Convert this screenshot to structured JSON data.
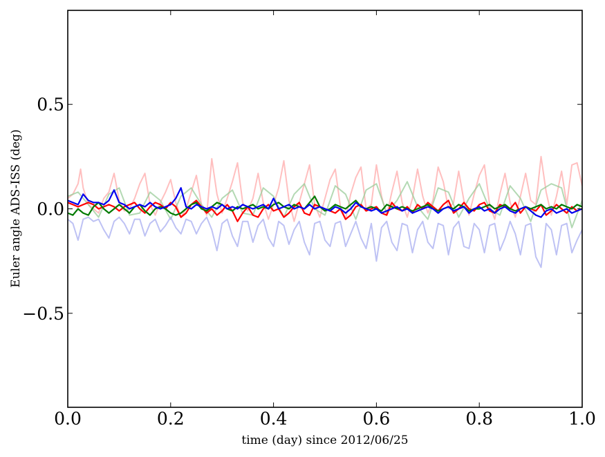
{
  "chart_data": {
    "type": "line",
    "title": "",
    "xlabel": "time (day) since 2012/06/25",
    "ylabel": "Euler angle ADS-ISS (deg)",
    "xlim": [
      0.0,
      1.0
    ],
    "ylim": [
      -0.95,
      0.95
    ],
    "xticks": [
      0.0,
      0.2,
      0.4,
      0.6,
      0.8,
      1.0
    ],
    "xtick_labels": [
      "0.0",
      "0.2",
      "0.4",
      "0.6",
      "0.8",
      "1.0"
    ],
    "yticks": [
      -0.5,
      0.0,
      0.5
    ],
    "ytick_labels": [
      "−0.5",
      "0.0",
      "0.5"
    ],
    "grid": false,
    "legend": "none",
    "series": [
      {
        "color": "#ffaaaa",
        "opacity": 0.75,
        "width": 2,
        "x": [
          0.0,
          0.01,
          0.02,
          0.025,
          0.03,
          0.04,
          0.05,
          0.06,
          0.07,
          0.08,
          0.09,
          0.1,
          0.11,
          0.12,
          0.13,
          0.14,
          0.15,
          0.16,
          0.17,
          0.18,
          0.19,
          0.2,
          0.21,
          0.22,
          0.23,
          0.24,
          0.25,
          0.26,
          0.27,
          0.28,
          0.29,
          0.3,
          0.31,
          0.32,
          0.33,
          0.34,
          0.35,
          0.36,
          0.37,
          0.38,
          0.39,
          0.4,
          0.41,
          0.42,
          0.43,
          0.44,
          0.45,
          0.46,
          0.47,
          0.48,
          0.49,
          0.5,
          0.51,
          0.52,
          0.53,
          0.54,
          0.55,
          0.56,
          0.57,
          0.58,
          0.59,
          0.6,
          0.61,
          0.62,
          0.63,
          0.64,
          0.65,
          0.66,
          0.67,
          0.68,
          0.69,
          0.7,
          0.71,
          0.72,
          0.73,
          0.74,
          0.75,
          0.76,
          0.77,
          0.78,
          0.79,
          0.8,
          0.81,
          0.82,
          0.83,
          0.84,
          0.85,
          0.86,
          0.87,
          0.88,
          0.89,
          0.9,
          0.91,
          0.92,
          0.93,
          0.94,
          0.95,
          0.96,
          0.97,
          0.98,
          0.99,
          1.0
        ],
        "y": [
          0.05,
          0.07,
          0.12,
          0.19,
          0.1,
          0.02,
          0.0,
          -0.02,
          0.05,
          0.08,
          0.17,
          0.04,
          -0.01,
          0.0,
          0.05,
          0.12,
          0.17,
          0.02,
          -0.03,
          0.03,
          0.08,
          0.14,
          0.03,
          -0.04,
          0.0,
          0.08,
          0.16,
          0.02,
          -0.03,
          0.24,
          0.07,
          -0.02,
          0.05,
          0.13,
          0.22,
          0.03,
          -0.01,
          0.05,
          0.17,
          0.03,
          -0.05,
          0.02,
          0.1,
          0.23,
          0.04,
          -0.06,
          0.03,
          0.12,
          0.21,
          0.02,
          -0.04,
          0.05,
          0.14,
          0.19,
          0.01,
          -0.05,
          0.07,
          0.15,
          0.2,
          0.0,
          0.02,
          0.21,
          0.06,
          -0.03,
          0.08,
          0.18,
          0.03,
          -0.04,
          0.05,
          0.19,
          0.06,
          -0.02,
          0.04,
          0.2,
          0.13,
          0.0,
          0.03,
          0.18,
          0.04,
          -0.03,
          0.07,
          0.16,
          0.21,
          0.02,
          -0.05,
          0.07,
          0.17,
          0.03,
          -0.04,
          0.06,
          0.17,
          0.04,
          0.02,
          0.25,
          0.08,
          -0.03,
          0.06,
          0.18,
          0.02,
          0.21,
          0.22,
          0.11
        ]
      },
      {
        "color": "#99cc99",
        "opacity": 0.75,
        "width": 2,
        "x": [
          0.0,
          0.02,
          0.04,
          0.06,
          0.08,
          0.1,
          0.12,
          0.14,
          0.16,
          0.18,
          0.2,
          0.22,
          0.24,
          0.26,
          0.28,
          0.3,
          0.32,
          0.34,
          0.36,
          0.38,
          0.4,
          0.42,
          0.44,
          0.46,
          0.48,
          0.5,
          0.52,
          0.54,
          0.56,
          0.58,
          0.6,
          0.62,
          0.64,
          0.66,
          0.68,
          0.7,
          0.72,
          0.74,
          0.76,
          0.78,
          0.8,
          0.82,
          0.84,
          0.86,
          0.88,
          0.9,
          0.92,
          0.94,
          0.96,
          0.98,
          1.0
        ],
        "y": [
          0.06,
          0.08,
          0.02,
          -0.04,
          0.07,
          0.1,
          -0.03,
          -0.02,
          0.08,
          0.04,
          -0.05,
          0.06,
          0.1,
          0.02,
          -0.04,
          0.05,
          0.09,
          -0.02,
          -0.03,
          0.1,
          0.06,
          -0.04,
          0.07,
          0.12,
          0.0,
          -0.03,
          0.11,
          0.07,
          -0.05,
          0.09,
          0.12,
          -0.02,
          0.04,
          0.13,
          0.01,
          -0.05,
          0.1,
          0.08,
          -0.04,
          0.05,
          0.12,
          0.0,
          -0.03,
          0.11,
          0.05,
          -0.06,
          0.09,
          0.12,
          0.1,
          -0.09,
          0.04
        ]
      },
      {
        "color": "#a8aef0",
        "opacity": 0.75,
        "width": 2,
        "x": [
          0.0,
          0.01,
          0.02,
          0.03,
          0.04,
          0.05,
          0.06,
          0.07,
          0.08,
          0.09,
          0.1,
          0.11,
          0.12,
          0.13,
          0.14,
          0.15,
          0.16,
          0.17,
          0.18,
          0.19,
          0.2,
          0.21,
          0.22,
          0.23,
          0.24,
          0.25,
          0.26,
          0.27,
          0.28,
          0.29,
          0.3,
          0.31,
          0.32,
          0.33,
          0.34,
          0.35,
          0.36,
          0.37,
          0.38,
          0.39,
          0.4,
          0.41,
          0.42,
          0.43,
          0.44,
          0.45,
          0.46,
          0.47,
          0.48,
          0.49,
          0.5,
          0.51,
          0.52,
          0.53,
          0.54,
          0.55,
          0.56,
          0.57,
          0.58,
          0.59,
          0.6,
          0.61,
          0.62,
          0.63,
          0.64,
          0.65,
          0.66,
          0.67,
          0.68,
          0.69,
          0.7,
          0.71,
          0.72,
          0.73,
          0.74,
          0.75,
          0.76,
          0.77,
          0.78,
          0.79,
          0.8,
          0.81,
          0.82,
          0.83,
          0.84,
          0.85,
          0.86,
          0.87,
          0.88,
          0.89,
          0.9,
          0.91,
          0.92,
          0.93,
          0.94,
          0.95,
          0.96,
          0.97,
          0.98,
          0.99,
          1.0
        ],
        "y": [
          -0.05,
          -0.07,
          -0.15,
          -0.05,
          -0.04,
          -0.06,
          -0.05,
          -0.1,
          -0.14,
          -0.06,
          -0.04,
          -0.07,
          -0.12,
          -0.05,
          -0.05,
          -0.13,
          -0.07,
          -0.05,
          -0.11,
          -0.08,
          -0.04,
          -0.09,
          -0.12,
          -0.05,
          -0.06,
          -0.12,
          -0.07,
          -0.04,
          -0.1,
          -0.2,
          -0.07,
          -0.05,
          -0.13,
          -0.18,
          -0.06,
          -0.06,
          -0.16,
          -0.08,
          -0.05,
          -0.14,
          -0.18,
          -0.06,
          -0.08,
          -0.17,
          -0.1,
          -0.06,
          -0.16,
          -0.22,
          -0.07,
          -0.06,
          -0.15,
          -0.18,
          -0.07,
          -0.06,
          -0.18,
          -0.12,
          -0.06,
          -0.14,
          -0.19,
          -0.07,
          -0.25,
          -0.09,
          -0.06,
          -0.16,
          -0.2,
          -0.07,
          -0.08,
          -0.21,
          -0.1,
          -0.06,
          -0.16,
          -0.19,
          -0.07,
          -0.08,
          -0.22,
          -0.09,
          -0.06,
          -0.18,
          -0.19,
          -0.07,
          -0.1,
          -0.21,
          -0.08,
          -0.07,
          -0.2,
          -0.14,
          -0.06,
          -0.12,
          -0.22,
          -0.08,
          -0.07,
          -0.23,
          -0.28,
          -0.07,
          -0.1,
          -0.22,
          -0.08,
          -0.07,
          -0.21,
          -0.15,
          -0.1
        ]
      },
      {
        "color": "#ff0000",
        "opacity": 1,
        "width": 2.2,
        "x": [
          0.0,
          0.01,
          0.02,
          0.03,
          0.04,
          0.05,
          0.06,
          0.07,
          0.08,
          0.09,
          0.1,
          0.11,
          0.12,
          0.13,
          0.14,
          0.15,
          0.16,
          0.17,
          0.18,
          0.19,
          0.2,
          0.21,
          0.22,
          0.23,
          0.24,
          0.25,
          0.26,
          0.27,
          0.28,
          0.29,
          0.3,
          0.31,
          0.32,
          0.33,
          0.34,
          0.35,
          0.36,
          0.37,
          0.38,
          0.39,
          0.4,
          0.41,
          0.42,
          0.43,
          0.44,
          0.45,
          0.46,
          0.47,
          0.48,
          0.49,
          0.5,
          0.51,
          0.52,
          0.53,
          0.54,
          0.55,
          0.56,
          0.57,
          0.58,
          0.59,
          0.6,
          0.61,
          0.62,
          0.63,
          0.64,
          0.65,
          0.66,
          0.67,
          0.68,
          0.69,
          0.7,
          0.71,
          0.72,
          0.73,
          0.74,
          0.75,
          0.76,
          0.77,
          0.78,
          0.79,
          0.8,
          0.81,
          0.82,
          0.83,
          0.84,
          0.85,
          0.86,
          0.87,
          0.88,
          0.89,
          0.9,
          0.91,
          0.92,
          0.93,
          0.94,
          0.95,
          0.96,
          0.97,
          0.98,
          0.99,
          1.0
        ],
        "y": [
          0.03,
          0.02,
          0.01,
          0.02,
          0.03,
          0.02,
          0.0,
          0.01,
          0.02,
          0.01,
          -0.01,
          0.01,
          0.02,
          0.03,
          0.0,
          -0.02,
          0.01,
          0.03,
          0.02,
          0.0,
          0.03,
          0.01,
          -0.04,
          -0.02,
          0.02,
          0.04,
          0.01,
          -0.02,
          0.0,
          -0.03,
          -0.01,
          0.02,
          -0.01,
          -0.06,
          -0.02,
          0.01,
          -0.03,
          -0.04,
          0.0,
          0.02,
          -0.01,
          0.0,
          -0.04,
          -0.02,
          0.01,
          0.03,
          -0.02,
          -0.03,
          0.02,
          0.01,
          0.0,
          -0.01,
          -0.02,
          0.0,
          -0.05,
          -0.03,
          0.01,
          0.02,
          -0.01,
          0.0,
          0.01,
          -0.02,
          -0.03,
          0.03,
          0.0,
          -0.01,
          0.01,
          -0.02,
          0.02,
          0.0,
          0.03,
          0.01,
          -0.01,
          0.02,
          0.04,
          -0.02,
          0.0,
          0.03,
          0.0,
          -0.01,
          0.02,
          0.03,
          -0.01,
          -0.02,
          0.02,
          0.01,
          0.0,
          0.03,
          -0.02,
          0.01,
          0.0,
          -0.01,
          0.02,
          -0.03,
          -0.01,
          0.02,
          0.0,
          -0.02,
          0.01,
          -0.01,
          0.0
        ]
      },
      {
        "color": "#007a00",
        "opacity": 1,
        "width": 2.2,
        "x": [
          0.0,
          0.01,
          0.02,
          0.03,
          0.04,
          0.05,
          0.06,
          0.07,
          0.08,
          0.09,
          0.1,
          0.11,
          0.12,
          0.13,
          0.14,
          0.15,
          0.16,
          0.17,
          0.18,
          0.19,
          0.2,
          0.21,
          0.22,
          0.23,
          0.24,
          0.25,
          0.26,
          0.27,
          0.28,
          0.29,
          0.3,
          0.31,
          0.32,
          0.33,
          0.34,
          0.35,
          0.36,
          0.37,
          0.38,
          0.39,
          0.4,
          0.41,
          0.42,
          0.43,
          0.44,
          0.45,
          0.46,
          0.47,
          0.48,
          0.49,
          0.5,
          0.51,
          0.52,
          0.53,
          0.54,
          0.55,
          0.56,
          0.57,
          0.58,
          0.59,
          0.6,
          0.61,
          0.62,
          0.63,
          0.64,
          0.65,
          0.66,
          0.67,
          0.68,
          0.69,
          0.7,
          0.71,
          0.72,
          0.73,
          0.74,
          0.75,
          0.76,
          0.77,
          0.78,
          0.79,
          0.8,
          0.81,
          0.82,
          0.83,
          0.84,
          0.85,
          0.86,
          0.87,
          0.88,
          0.89,
          0.9,
          0.91,
          0.92,
          0.93,
          0.94,
          0.95,
          0.96,
          0.97,
          0.98,
          0.99,
          1.0
        ],
        "y": [
          -0.02,
          -0.03,
          0.0,
          -0.02,
          -0.03,
          0.01,
          0.03,
          0.0,
          -0.02,
          0.0,
          0.02,
          0.0,
          -0.02,
          0.01,
          0.02,
          -0.01,
          -0.03,
          0.0,
          0.01,
          0.0,
          -0.02,
          -0.03,
          -0.02,
          0.0,
          0.02,
          0.03,
          0.0,
          -0.01,
          0.01,
          0.03,
          0.02,
          0.0,
          -0.01,
          0.01,
          0.0,
          0.01,
          0.02,
          0.0,
          0.01,
          0.0,
          0.02,
          0.03,
          0.01,
          0.0,
          0.02,
          0.01,
          0.0,
          0.03,
          0.06,
          0.01,
          -0.01,
          0.0,
          0.02,
          0.01,
          0.0,
          0.02,
          0.04,
          0.01,
          0.0,
          0.01,
          0.0,
          -0.01,
          0.02,
          0.01,
          0.0,
          0.01,
          0.0,
          -0.01,
          0.0,
          0.01,
          0.02,
          0.0,
          -0.01,
          0.0,
          0.01,
          0.0,
          0.02,
          0.01,
          -0.01,
          0.0,
          0.0,
          0.01,
          0.02,
          0.0,
          0.01,
          0.02,
          0.0,
          -0.01,
          0.0,
          0.01,
          0.0,
          0.01,
          0.02,
          0.0,
          0.01,
          0.0,
          0.02,
          0.01,
          0.0,
          0.02,
          0.01
        ]
      },
      {
        "color": "#0000ee",
        "opacity": 1,
        "width": 2.2,
        "x": [
          0.0,
          0.01,
          0.02,
          0.03,
          0.04,
          0.05,
          0.06,
          0.07,
          0.08,
          0.09,
          0.1,
          0.11,
          0.12,
          0.13,
          0.14,
          0.15,
          0.16,
          0.17,
          0.18,
          0.19,
          0.2,
          0.21,
          0.22,
          0.23,
          0.24,
          0.25,
          0.26,
          0.27,
          0.28,
          0.29,
          0.3,
          0.31,
          0.32,
          0.33,
          0.34,
          0.35,
          0.36,
          0.37,
          0.38,
          0.39,
          0.4,
          0.41,
          0.42,
          0.43,
          0.44,
          0.45,
          0.46,
          0.47,
          0.48,
          0.49,
          0.5,
          0.51,
          0.52,
          0.53,
          0.54,
          0.55,
          0.56,
          0.57,
          0.58,
          0.59,
          0.6,
          0.61,
          0.62,
          0.63,
          0.64,
          0.65,
          0.66,
          0.67,
          0.68,
          0.69,
          0.7,
          0.71,
          0.72,
          0.73,
          0.74,
          0.75,
          0.76,
          0.77,
          0.78,
          0.79,
          0.8,
          0.81,
          0.82,
          0.83,
          0.84,
          0.85,
          0.86,
          0.87,
          0.88,
          0.89,
          0.9,
          0.91,
          0.92,
          0.93,
          0.94,
          0.95,
          0.96,
          0.97,
          0.98,
          0.99,
          1.0
        ],
        "y": [
          0.04,
          0.03,
          0.02,
          0.07,
          0.04,
          0.03,
          0.03,
          0.02,
          0.04,
          0.09,
          0.03,
          0.02,
          0.0,
          0.01,
          0.02,
          0.01,
          0.03,
          0.01,
          0.0,
          0.01,
          0.02,
          0.05,
          0.1,
          0.01,
          0.0,
          0.02,
          0.01,
          0.0,
          0.01,
          0.0,
          0.02,
          0.0,
          0.01,
          0.0,
          0.02,
          0.01,
          0.0,
          0.01,
          0.02,
          0.0,
          0.05,
          0.0,
          0.01,
          0.02,
          0.0,
          0.01,
          0.0,
          0.02,
          0.0,
          0.01,
          0.0,
          -0.01,
          0.01,
          0.0,
          -0.02,
          0.0,
          0.03,
          0.01,
          0.0,
          -0.01,
          0.0,
          -0.02,
          -0.01,
          0.0,
          0.01,
          -0.01,
          0.0,
          -0.02,
          -0.01,
          0.0,
          0.01,
          0.0,
          -0.02,
          0.0,
          0.01,
          -0.01,
          0.0,
          0.01,
          -0.02,
          0.0,
          0.01,
          -0.01,
          0.0,
          -0.02,
          0.0,
          0.01,
          -0.01,
          -0.02,
          0.0,
          0.01,
          -0.01,
          -0.03,
          -0.04,
          -0.01,
          0.0,
          -0.02,
          -0.01,
          0.0,
          -0.02,
          -0.01,
          0.0
        ]
      }
    ]
  }
}
